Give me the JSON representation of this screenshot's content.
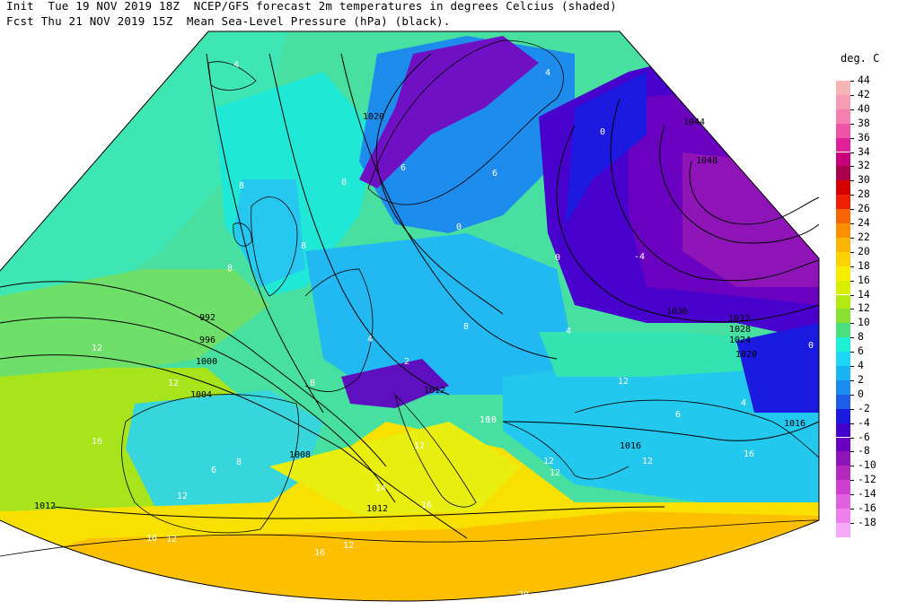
{
  "header": {
    "line1": "Init  Tue 19 NOV 2019 18Z  NCEP/GFS forecast 2m temperatures in degrees Celcius (shaded)",
    "line2": "Fcst Thu 21 NOV 2019 15Z  Mean Sea-Level Pressure (hPa) (black)."
  },
  "legend": {
    "unit": "deg. C",
    "entries": [
      {
        "label": "44",
        "color": "#f6b4b4"
      },
      {
        "label": "42",
        "color": "#f59cb4"
      },
      {
        "label": "40",
        "color": "#f57fb0"
      },
      {
        "label": "38",
        "color": "#ef52a8"
      },
      {
        "label": "36",
        "color": "#e0209a"
      },
      {
        "label": "34",
        "color": "#c8007c"
      },
      {
        "label": "32",
        "color": "#a8004a"
      },
      {
        "label": "30",
        "color": "#d40000"
      },
      {
        "label": "28",
        "color": "#f01e00"
      },
      {
        "label": "26",
        "color": "#f86400"
      },
      {
        "label": "24",
        "color": "#fb8f00"
      },
      {
        "label": "22",
        "color": "#fbb400"
      },
      {
        "label": "20",
        "color": "#fcd200"
      },
      {
        "label": "18",
        "color": "#f6ee00"
      },
      {
        "label": "16",
        "color": "#d6f000"
      },
      {
        "label": "14",
        "color": "#b4ea10"
      },
      {
        "label": "12",
        "color": "#8ae030"
      },
      {
        "label": "10",
        "color": "#48e080"
      },
      {
        "label": "8",
        "color": "#1ef0d4"
      },
      {
        "label": "6",
        "color": "#1ed6f6"
      },
      {
        "label": "4",
        "color": "#18b4f4"
      },
      {
        "label": "2",
        "color": "#1a8cf0"
      },
      {
        "label": "0",
        "color": "#1c5ee8"
      },
      {
        "label": "-2",
        "color": "#1a1ae0"
      },
      {
        "label": "-4",
        "color": "#4400cc"
      },
      {
        "label": "-6",
        "color": "#6a00c0"
      },
      {
        "label": "-8",
        "color": "#8e14b8"
      },
      {
        "label": "-10",
        "color": "#b428c0"
      },
      {
        "label": "-12",
        "color": "#d040d0"
      },
      {
        "label": "-14",
        "color": "#e060e0"
      },
      {
        "label": "-16",
        "color": "#ee80ee"
      },
      {
        "label": "-18",
        "color": "#f8a8f8"
      }
    ]
  },
  "isobar_labels": [
    "1020",
    "1044",
    "1048",
    "992",
    "996",
    "1000",
    "1004",
    "1008",
    "1012",
    "1012",
    "1012",
    "1016",
    "1016",
    "1020",
    "1024",
    "1028",
    "1032",
    "1036"
  ],
  "temp_labels": [
    "4",
    "4",
    "0",
    "8",
    "8",
    "6",
    "6",
    "8",
    "8",
    "0",
    "2",
    "8",
    "4",
    "4",
    "8",
    "10",
    "12",
    "12",
    "12",
    "12",
    "12",
    "12",
    "12",
    "16",
    "16",
    "12",
    "14",
    "16",
    "16",
    "12",
    "20",
    "6",
    "8",
    "10",
    "12",
    "16",
    "-4",
    "0",
    "0",
    "6",
    "4"
  ]
}
